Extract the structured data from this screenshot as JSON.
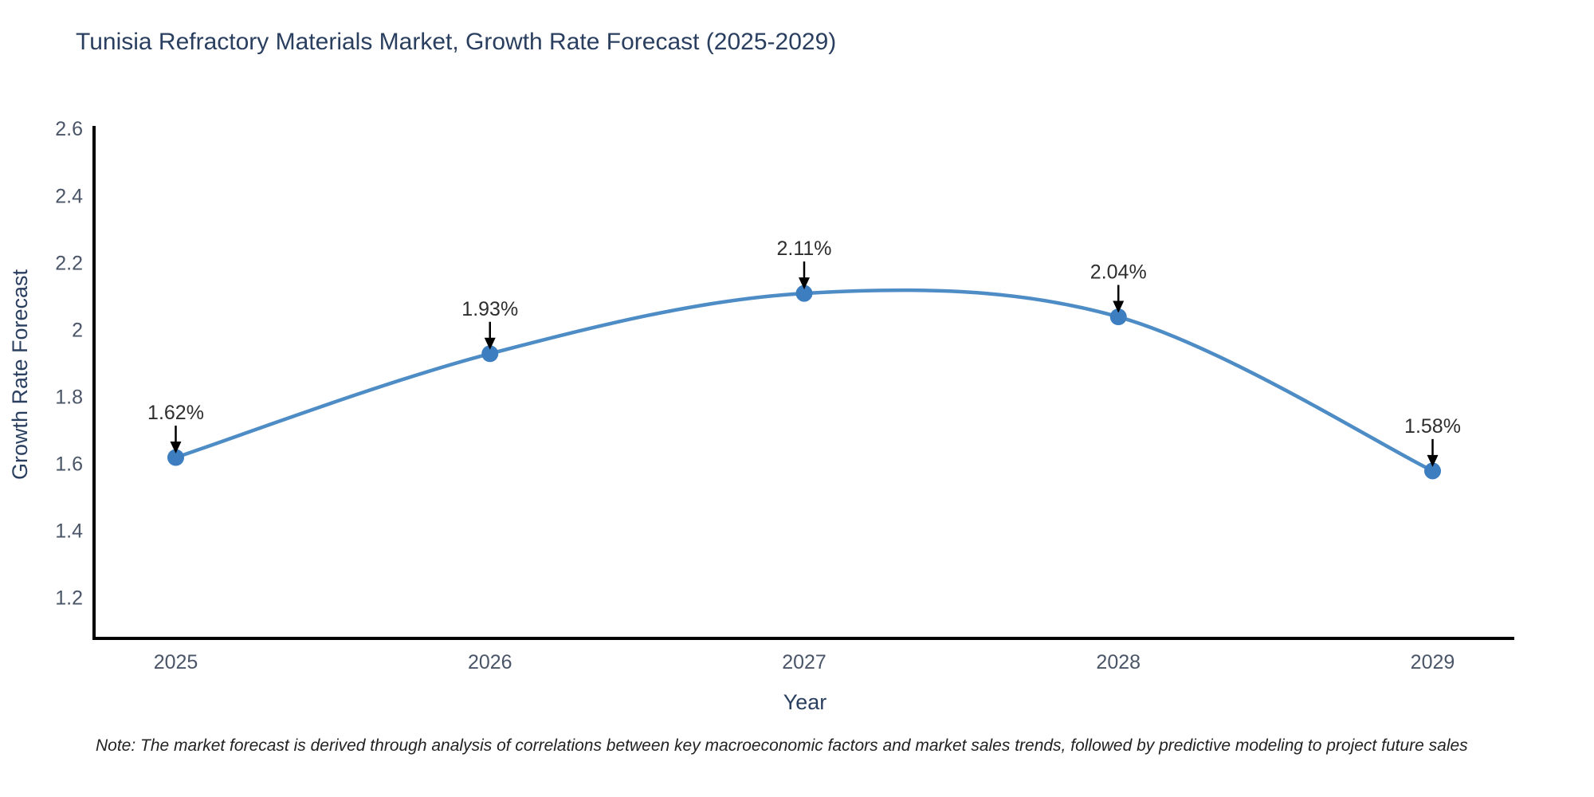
{
  "page": {
    "background": "#ffffff"
  },
  "title": {
    "text": "Tunisia Refractory Materials Market, Growth Rate Forecast (2025-2029)"
  },
  "note": {
    "text": "Note: The market forecast is derived through analysis of correlations between key macroeconomic factors and market sales trends, followed by predictive modeling to project future sales"
  },
  "chart_data": {
    "type": "line",
    "line_shape": "spline",
    "title": "Tunisia Refractory Materials Market, Growth Rate Forecast (2025-2029)",
    "xlabel": "Year",
    "ylabel": "Growth Rate Forecast",
    "x": [
      2025,
      2026,
      2027,
      2028,
      2029
    ],
    "values": [
      1.62,
      1.93,
      2.11,
      2.04,
      1.58
    ],
    "point_labels": [
      "1.62%",
      "1.93%",
      "2.11%",
      "2.04%",
      "1.58%"
    ],
    "x_ticks": [
      2025,
      2026,
      2027,
      2028,
      2029
    ],
    "x_tick_labels": [
      "2025",
      "2026",
      "2027",
      "2028",
      "2029"
    ],
    "y_ticks": [
      1.2,
      1.4,
      1.6,
      1.8,
      2.0,
      2.2,
      2.4,
      2.6
    ],
    "y_tick_labels": [
      "1.2",
      "1.4",
      "1.6",
      "1.8",
      "2",
      "2.2",
      "2.4",
      "2.6"
    ],
    "xlim": [
      2024.74,
      2029.26
    ],
    "ylim": [
      1.08,
      2.61
    ],
    "grid": false,
    "legend": "none",
    "colors": {
      "line": "#4d8cc5",
      "marker": "#3c7ebf",
      "axis": "#000000",
      "tick_label": "#4a5568",
      "axis_title": "#2a3f5f",
      "chart_title": "#2a3f5f",
      "annotation_text": "#2e2e2e",
      "annotation_arrow": "#000000"
    }
  }
}
